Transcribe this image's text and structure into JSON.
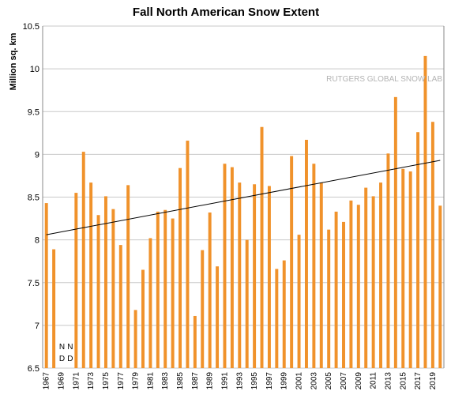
{
  "chart_data": {
    "type": "bar",
    "title": "Fall North American Snow Extent",
    "ylabel": "Million sq. km",
    "xlabel": "",
    "ylim": [
      6.5,
      10.5
    ],
    "yticks": [
      6.5,
      7,
      7.5,
      8,
      8.5,
      9,
      9.5,
      10,
      10.5
    ],
    "ytick_labels": [
      "6.5",
      "7",
      "7.5",
      "8",
      "8.5",
      "9",
      "9.5",
      "10",
      "10.5"
    ],
    "grid": true,
    "bar_color": "#F0922B",
    "watermark": "RUTGERS GLOBAL SNOW LAB",
    "no_data_label": "N D",
    "no_data_years": [
      1969,
      1970
    ],
    "x_tick_labels": [
      "1967",
      "1969",
      "1971",
      "1973",
      "1975",
      "1977",
      "1979",
      "1981",
      "1983",
      "1985",
      "1987",
      "1989",
      "1991",
      "1993",
      "1995",
      "1997",
      "1999",
      "2001",
      "2003",
      "2005",
      "2007",
      "2009",
      "2011",
      "2013",
      "2015",
      "2017",
      "2019"
    ],
    "categories": [
      1967,
      1968,
      1969,
      1970,
      1971,
      1972,
      1973,
      1974,
      1975,
      1976,
      1977,
      1978,
      1979,
      1980,
      1981,
      1982,
      1983,
      1984,
      1985,
      1986,
      1987,
      1988,
      1989,
      1990,
      1991,
      1992,
      1993,
      1994,
      1995,
      1996,
      1997,
      1998,
      1999,
      2000,
      2001,
      2002,
      2003,
      2004,
      2005,
      2006,
      2007,
      2008,
      2009,
      2010,
      2011,
      2012,
      2013,
      2014,
      2015,
      2016,
      2017,
      2018,
      2019,
      2020
    ],
    "values": [
      8.43,
      7.89,
      null,
      null,
      8.55,
      9.03,
      8.67,
      8.29,
      8.51,
      8.36,
      7.94,
      8.64,
      7.18,
      7.65,
      8.02,
      8.33,
      8.35,
      8.25,
      8.84,
      9.16,
      7.11,
      7.88,
      8.32,
      7.69,
      8.89,
      8.85,
      8.67,
      8.0,
      8.65,
      9.32,
      8.63,
      7.66,
      7.76,
      8.98,
      8.06,
      9.17,
      8.89,
      8.67,
      8.12,
      8.33,
      8.21,
      8.46,
      8.41,
      8.61,
      8.51,
      8.67,
      9.01,
      9.67,
      8.83,
      8.8,
      9.26,
      10.15,
      9.38,
      8.4
    ],
    "trendline": {
      "x": [
        1967,
        2020
      ],
      "y": [
        8.06,
        8.93
      ]
    }
  }
}
